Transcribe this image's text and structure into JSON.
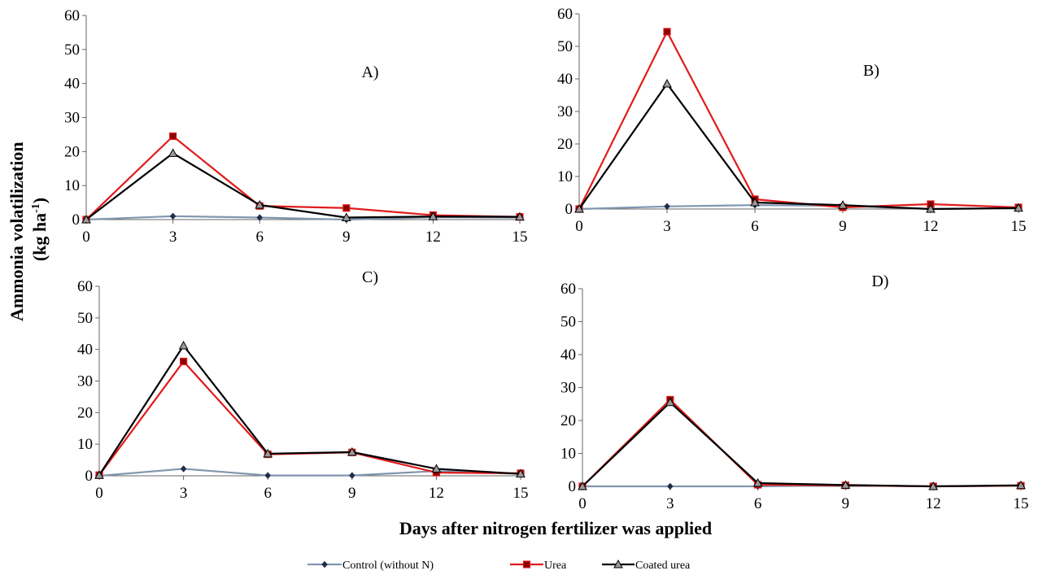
{
  "figure": {
    "ylabel_line1": "Ammonia  volatilization",
    "ylabel_line2": "(kg ha",
    "ylabel_sup": "-1",
    "ylabel_close": ")",
    "xlabel": "Days after nitrogen fertilizer was applied"
  },
  "legend": [
    {
      "name": "Control (without N)",
      "color": "#8096b0",
      "marker": "diamond"
    },
    {
      "name": "Urea",
      "color": "#e01b1b",
      "marker": "square"
    },
    {
      "name": "Coated urea",
      "color": "#000000",
      "marker": "triangle"
    }
  ],
  "chart_data": [
    {
      "type": "line",
      "panel_label": "A)",
      "x": [
        0,
        3,
        6,
        9,
        12,
        15
      ],
      "x_ticks": [
        "0",
        "3",
        "6",
        "9",
        "12",
        "15"
      ],
      "y_ticks": [
        "0",
        "10",
        "20",
        "30",
        "40",
        "50",
        "60"
      ],
      "ylim": [
        0,
        60
      ],
      "xlim": [
        0,
        15
      ],
      "series": [
        {
          "name": "Control (without N)",
          "values": [
            0,
            1,
            0.6,
            0,
            0.7,
            0.6
          ]
        },
        {
          "name": "Urea",
          "values": [
            0,
            24.5,
            4,
            3.4,
            1.3,
            0.8
          ]
        },
        {
          "name": "Coated urea",
          "values": [
            0,
            19.5,
            4.3,
            0.6,
            0.9,
            0.8
          ]
        }
      ]
    },
    {
      "type": "line",
      "panel_label": "B)",
      "x": [
        0,
        3,
        6,
        9,
        12,
        15
      ],
      "x_ticks": [
        "0",
        "3",
        "6",
        "9",
        "12",
        "15"
      ],
      "y_ticks": [
        "0",
        "10",
        "20",
        "30",
        "40",
        "50",
        "60"
      ],
      "ylim": [
        0,
        60
      ],
      "xlim": [
        0,
        15
      ],
      "series": [
        {
          "name": "Control (without N)",
          "values": [
            0,
            0.8,
            1.2,
            1,
            0,
            0.2
          ]
        },
        {
          "name": "Urea",
          "values": [
            0,
            54.5,
            3,
            0.5,
            1.5,
            0.5
          ]
        },
        {
          "name": "Coated urea",
          "values": [
            0,
            38.5,
            2,
            1.2,
            0,
            0.3
          ]
        }
      ]
    },
    {
      "type": "line",
      "panel_label": "C)",
      "x": [
        0,
        3,
        6,
        9,
        12,
        15
      ],
      "x_ticks": [
        "0",
        "3",
        "6",
        "9",
        "12",
        "15"
      ],
      "y_ticks": [
        "0",
        "10",
        "20",
        "30",
        "40",
        "50",
        "60"
      ],
      "ylim": [
        0,
        60
      ],
      "xlim": [
        0,
        15
      ],
      "series": [
        {
          "name": "Control (without N)",
          "values": [
            0,
            2.2,
            0.1,
            0.1,
            1.5,
            0.6
          ]
        },
        {
          "name": "Urea",
          "values": [
            0.2,
            36.2,
            6.8,
            7.4,
            1,
            0.8
          ]
        },
        {
          "name": "Coated urea",
          "values": [
            0.2,
            41.2,
            7,
            7.5,
            2.2,
            0.6
          ]
        }
      ]
    },
    {
      "type": "line",
      "panel_label": "D)",
      "x": [
        0,
        3,
        6,
        9,
        12,
        15
      ],
      "x_ticks": [
        "0",
        "3",
        "6",
        "9",
        "12",
        "15"
      ],
      "y_ticks": [
        "0",
        "10",
        "20",
        "30",
        "40",
        "50",
        "60"
      ],
      "ylim": [
        0,
        60
      ],
      "xlim": [
        0,
        15
      ],
      "series": [
        {
          "name": "Control (without N)",
          "values": [
            0,
            0,
            0,
            0.3,
            0,
            0.2
          ]
        },
        {
          "name": "Urea",
          "values": [
            0,
            26.3,
            0.5,
            0.3,
            0,
            0.2
          ]
        },
        {
          "name": "Coated urea",
          "values": [
            0,
            25.5,
            1,
            0.4,
            0,
            0.3
          ]
        }
      ]
    }
  ]
}
